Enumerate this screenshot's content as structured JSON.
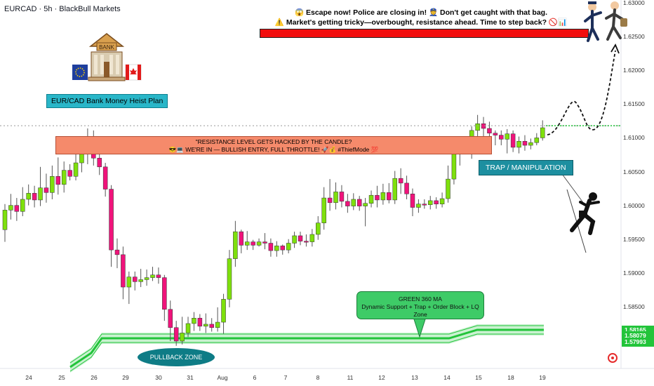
{
  "header": {
    "symbol_label": "EURCAD · 5h · BlackBull Markets"
  },
  "annotations": {
    "warning_line1": "😱 Escape now! Police are closing in! 👮 Don't get caught with that bag.",
    "warning_line2": "⚠️ Market's getting tricky—overbought, resistance ahead. Time to step back? 🚫📊",
    "plan_label": "EUR/CAD Bank Money Heist Plan",
    "bank_sign": "BANK",
    "resistance_line1": "\"RESISTANCE LEVEL GETS HACKED BY THE CANDLE?",
    "resistance_line2": "😎💻 WE'RE IN — BULLISH ENTRY, FULL THROTTLE! 🚀💰 #ThiefMode 💯",
    "trap_label": "TRAP / MANIPULATION",
    "ma_title": "GREEN 360 MA",
    "ma_desc": "Dynamic Support + Trap + Order Block + LQ Zone",
    "pullback_label": "PULLBACK ZONE"
  },
  "colors": {
    "bull": "#7ee00c",
    "bear": "#f0137b",
    "ma": "#22c43a",
    "warning_bar": "#f20d0d",
    "resistance_zone": "#f58a6b",
    "trap": "#1d8fa0"
  },
  "chart_data": {
    "type": "candlestick",
    "ylim": [
      1.575,
      1.632
    ],
    "y_ticks": [
      "1.63000",
      "1.62500",
      "1.62000",
      "1.61500",
      "1.61000",
      "1.60500",
      "1.60000",
      "1.59500",
      "1.59000",
      "1.58500"
    ],
    "x_ticks": [
      "24",
      "25",
      "26",
      "29",
      "30",
      "31",
      "Aug",
      "6",
      "7",
      "8",
      "11",
      "12",
      "13",
      "14",
      "15",
      "18",
      "19"
    ],
    "price_tags": [
      {
        "label": "1.58165",
        "value": 1.58165,
        "color": "#22c43a"
      },
      {
        "label": "1.58079",
        "value": 1.58079,
        "color": "#22c43a"
      },
      {
        "label": "1.57993",
        "value": 1.57993,
        "color": "#22c43a"
      }
    ],
    "current_price": 1.6119,
    "candles": [
      [
        1.5965,
        1.5994,
        1.5947,
        1.6003
      ],
      [
        1.5994,
        1.6001,
        1.598,
        1.6018
      ],
      [
        1.6001,
        1.5992,
        1.5978,
        1.6012
      ],
      [
        1.5992,
        1.601,
        1.5985,
        1.6028
      ],
      [
        1.601,
        1.6019,
        1.6001,
        1.6032
      ],
      [
        1.6019,
        1.6009,
        1.5998,
        1.603
      ],
      [
        1.6009,
        1.6027,
        1.6,
        1.6058
      ],
      [
        1.6027,
        1.602,
        1.6005,
        1.6048
      ],
      [
        1.602,
        1.6044,
        1.601,
        1.606
      ],
      [
        1.6044,
        1.6032,
        1.6017,
        1.6072
      ],
      [
        1.6032,
        1.6053,
        1.602,
        1.6066
      ],
      [
        1.6053,
        1.6044,
        1.6038,
        1.6062
      ],
      [
        1.6044,
        1.6064,
        1.6038,
        1.6095
      ],
      [
        1.6064,
        1.6081,
        1.605,
        1.6102
      ],
      [
        1.6081,
        1.6095,
        1.6062,
        1.6115
      ],
      [
        1.6095,
        1.6071,
        1.606,
        1.6112
      ],
      [
        1.6071,
        1.6058,
        1.6046,
        1.6078
      ],
      [
        1.6058,
        1.6025,
        1.6014,
        1.6064
      ],
      [
        1.6025,
        1.5935,
        1.591,
        1.6031
      ],
      [
        1.5935,
        1.5928,
        1.5908,
        1.5952
      ],
      [
        1.5928,
        1.588,
        1.5862,
        1.594
      ],
      [
        1.588,
        1.5895,
        1.5855,
        1.5903
      ],
      [
        1.5895,
        1.5888,
        1.5875,
        1.5903
      ],
      [
        1.5888,
        1.5891,
        1.588,
        1.5907
      ],
      [
        1.5891,
        1.5894,
        1.5882,
        1.5906
      ],
      [
        1.5894,
        1.5898,
        1.5889,
        1.591
      ],
      [
        1.5898,
        1.5894,
        1.5885,
        1.5909
      ],
      [
        1.5894,
        1.5847,
        1.583,
        1.5898
      ],
      [
        1.5847,
        1.582,
        1.58,
        1.586
      ],
      [
        1.582,
        1.58,
        1.5793,
        1.583
      ],
      [
        1.58,
        1.5812,
        1.5795,
        1.5836
      ],
      [
        1.5812,
        1.5826,
        1.5806,
        1.5836
      ],
      [
        1.5826,
        1.5834,
        1.5815,
        1.5843
      ],
      [
        1.5834,
        1.5822,
        1.5815,
        1.584
      ],
      [
        1.5822,
        1.5825,
        1.5812,
        1.5841
      ],
      [
        1.5825,
        1.582,
        1.5814,
        1.5834
      ],
      [
        1.582,
        1.5828,
        1.5814,
        1.585
      ],
      [
        1.5828,
        1.5862,
        1.5811,
        1.587
      ],
      [
        1.5862,
        1.5922,
        1.585,
        1.5935
      ],
      [
        1.5922,
        1.5962,
        1.591,
        1.5978
      ],
      [
        1.5962,
        1.5942,
        1.593,
        1.5965
      ],
      [
        1.5942,
        1.5947,
        1.5935,
        1.5963
      ],
      [
        1.5947,
        1.5942,
        1.5935,
        1.595
      ],
      [
        1.5942,
        1.5947,
        1.594,
        1.5952
      ],
      [
        1.5947,
        1.5945,
        1.5936,
        1.596
      ],
      [
        1.5945,
        1.5934,
        1.5925,
        1.5952
      ],
      [
        1.5934,
        1.5941,
        1.5925,
        1.5948
      ],
      [
        1.5941,
        1.5935,
        1.5928,
        1.5943
      ],
      [
        1.5935,
        1.5945,
        1.593,
        1.5951
      ],
      [
        1.5945,
        1.5956,
        1.5938,
        1.5962
      ],
      [
        1.5956,
        1.5948,
        1.5942,
        1.5962
      ],
      [
        1.5948,
        1.5947,
        1.594,
        1.5958
      ],
      [
        1.5947,
        1.5958,
        1.594,
        1.5966
      ],
      [
        1.5958,
        1.5975,
        1.595,
        1.5985
      ],
      [
        1.5975,
        1.6012,
        1.5965,
        1.6028
      ],
      [
        1.6012,
        1.6005,
        1.5993,
        1.604
      ],
      [
        1.6005,
        1.6021,
        1.5995,
        1.6035
      ],
      [
        1.6021,
        1.6007,
        1.5998,
        1.6031
      ],
      [
        1.6007,
        1.6,
        1.599,
        1.6018
      ],
      [
        1.6,
        1.601,
        1.5994,
        1.6019
      ],
      [
        1.601,
        1.6,
        1.5993,
        1.6015
      ],
      [
        1.6,
        1.6004,
        1.597,
        1.6012
      ],
      [
        1.6004,
        1.6016,
        1.5998,
        1.6023
      ],
      [
        1.6016,
        1.6009,
        1.5998,
        1.603
      ],
      [
        1.6009,
        1.602,
        1.6002,
        1.6033
      ],
      [
        1.602,
        1.6009,
        1.6004,
        1.6034
      ],
      [
        1.6009,
        1.6041,
        1.6003,
        1.6052
      ],
      [
        1.6041,
        1.6034,
        1.6018,
        1.6056
      ],
      [
        1.6034,
        1.6018,
        1.601,
        1.6045
      ],
      [
        1.6018,
        1.5998,
        1.5985,
        1.6026
      ],
      [
        1.5998,
        1.6003,
        1.599,
        1.601
      ],
      [
        1.6003,
        1.6002,
        1.5996,
        1.601
      ],
      [
        1.6002,
        1.6008,
        1.5995,
        1.6015
      ],
      [
        1.6008,
        1.6003,
        1.5996,
        1.6013
      ],
      [
        1.6003,
        1.6011,
        1.5998,
        1.602
      ],
      [
        1.6011,
        1.604,
        1.6005,
        1.606
      ],
      [
        1.604,
        1.6078,
        1.6032,
        1.609
      ],
      [
        1.6078,
        1.6093,
        1.606,
        1.6103
      ],
      [
        1.6093,
        1.6083,
        1.6078,
        1.6098
      ],
      [
        1.6083,
        1.6112,
        1.607,
        1.6118
      ],
      [
        1.6112,
        1.6122,
        1.61,
        1.6135
      ],
      [
        1.6122,
        1.6115,
        1.61,
        1.6132
      ],
      [
        1.6115,
        1.6108,
        1.6098,
        1.6125
      ],
      [
        1.6108,
        1.6105,
        1.609,
        1.6112
      ],
      [
        1.6105,
        1.6099,
        1.609,
        1.6112
      ],
      [
        1.6099,
        1.6107,
        1.6078,
        1.6114
      ],
      [
        1.6107,
        1.6087,
        1.608,
        1.6112
      ],
      [
        1.6087,
        1.6096,
        1.6078,
        1.6103
      ],
      [
        1.6096,
        1.609,
        1.6082,
        1.6105
      ],
      [
        1.609,
        1.6094,
        1.6084,
        1.61
      ],
      [
        1.6094,
        1.6101,
        1.609,
        1.6108
      ],
      [
        1.6101,
        1.6116,
        1.6097,
        1.6127
      ]
    ]
  }
}
